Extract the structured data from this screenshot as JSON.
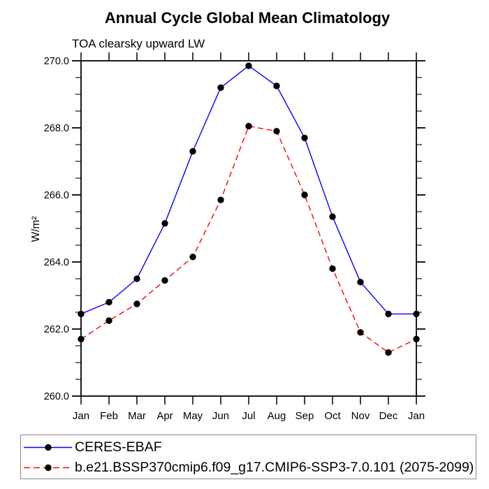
{
  "header": {
    "title": "Annual Cycle Global Mean Climatology",
    "subtitle": "TOA clearsky upward LW"
  },
  "axes": {
    "y_label": "W/m²",
    "y_tick_labels": [
      "260.0",
      "262.0",
      "264.0",
      "266.0",
      "268.0",
      "270.0"
    ],
    "x_tick_labels": [
      "Jan",
      "Feb",
      "Mar",
      "Apr",
      "May",
      "Jun",
      "Jul",
      "Aug",
      "Sep",
      "Oct",
      "Nov",
      "Dec",
      "Jan"
    ]
  },
  "legend": {
    "items": [
      {
        "label": "CERES-EBAF",
        "color": "#0000ff",
        "style": "solid"
      },
      {
        "label": "b.e21.BSSP370cmip6.f09_g17.CMIP6-SSP3-7.0.101 (2075-2099)",
        "color": "#ff0000",
        "style": "dashed"
      }
    ]
  },
  "chart_data": {
    "type": "line",
    "title": "Annual Cycle Global Mean Climatology",
    "subtitle": "TOA clearsky upward LW",
    "xlabel": "",
    "ylabel": "W/m²",
    "ylim": [
      260.0,
      270.0
    ],
    "y_major_step": 2.0,
    "y_minor_step": 0.5,
    "grid": false,
    "legend_position": "bottom-left-box",
    "marker": "filled-circle",
    "marker_color": "#000000",
    "categories": [
      "Jan",
      "Feb",
      "Mar",
      "Apr",
      "May",
      "Jun",
      "Jul",
      "Aug",
      "Sep",
      "Oct",
      "Nov",
      "Dec",
      "Jan"
    ],
    "series": [
      {
        "name": "CERES-EBAF",
        "color": "#0000ff",
        "line_style": "solid",
        "values": [
          262.45,
          262.8,
          263.5,
          265.15,
          267.3,
          269.2,
          269.85,
          269.25,
          267.7,
          265.35,
          263.4,
          262.45,
          262.45
        ]
      },
      {
        "name": "b.e21.BSSP370cmip6.f09_g17.CMIP6-SSP3-7.0.101 (2075-2099)",
        "color": "#ff0000",
        "line_style": "dashed",
        "values": [
          261.7,
          262.25,
          262.75,
          263.45,
          264.15,
          265.85,
          268.05,
          267.9,
          266.0,
          263.8,
          261.9,
          261.3,
          261.7
        ]
      }
    ]
  }
}
